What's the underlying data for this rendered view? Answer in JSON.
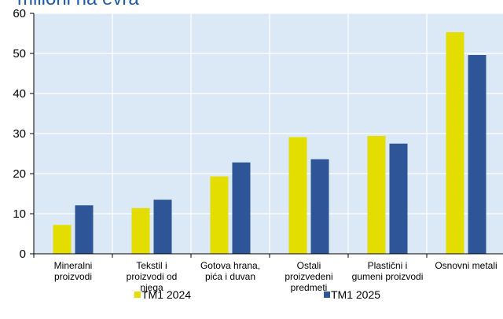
{
  "chart_data": {
    "type": "bar",
    "title": "milioni na evra",
    "categories": [
      [
        "Mineralni",
        "proizvodi"
      ],
      [
        "Tekstil i",
        "proizvodi od",
        "njega"
      ],
      [
        "Gotova hrana,",
        "pića i duvan"
      ],
      [
        "Ostali",
        "proizvedeni",
        "predmeti"
      ],
      [
        "Plastični i",
        "gumeni proizvodi"
      ],
      [
        "Osnovni metali"
      ]
    ],
    "series": [
      {
        "name": "TM1 2024",
        "color": "#e3dd00",
        "values": [
          7.2,
          11.4,
          19.3,
          29.1,
          29.4,
          55.3
        ]
      },
      {
        "name": "TM1 2025",
        "color": "#2e5597",
        "values": [
          12.1,
          13.5,
          22.8,
          23.6,
          27.5,
          49.6
        ]
      }
    ],
    "yticks": [
      0,
      10,
      20,
      30,
      40,
      50,
      60
    ],
    "ylim": [
      0,
      60
    ],
    "grid": true,
    "legend_position": "bottom",
    "colors": {
      "plot_background": "#dbe8f5",
      "grid": "#ffffff",
      "axis": "#000000"
    }
  }
}
